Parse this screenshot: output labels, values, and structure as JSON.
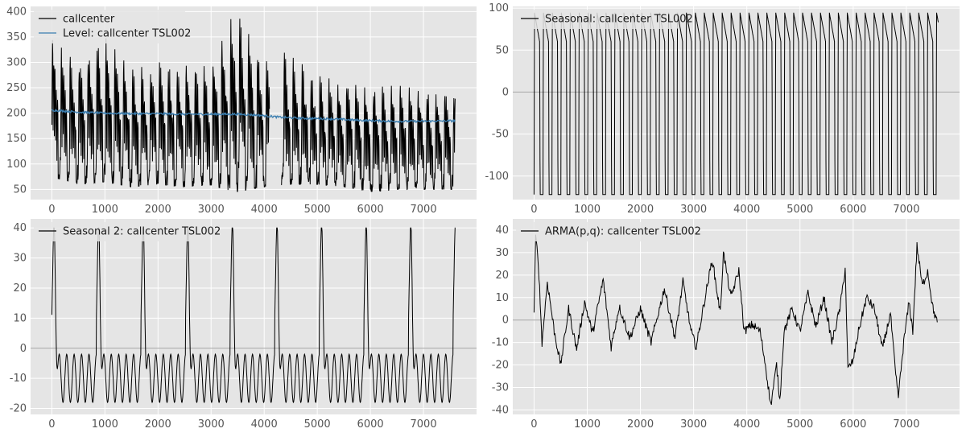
{
  "chart_data": [
    {
      "type": "line",
      "panel": "top-left",
      "title": "",
      "xlabel": "",
      "ylabel": "",
      "xlim": [
        -400,
        8000
      ],
      "ylim": [
        30,
        410
      ],
      "xticks": [
        0,
        1000,
        2000,
        3000,
        4000,
        5000,
        6000,
        7000
      ],
      "yticks": [
        50,
        100,
        150,
        200,
        250,
        300,
        350,
        400
      ],
      "grid": true,
      "zero_line": false,
      "legend_position": "top-left",
      "series": [
        {
          "name": "callcenter",
          "color": "#000000",
          "period": 168,
          "gap": [
            4100,
            4320
          ],
          "envelope": [
            {
              "x": 0,
              "low": 75,
              "high": 345
            },
            {
              "x": 500,
              "low": 60,
              "high": 300
            },
            {
              "x": 1000,
              "low": 65,
              "high": 350
            },
            {
              "x": 1500,
              "low": 55,
              "high": 285
            },
            {
              "x": 2000,
              "low": 60,
              "high": 300
            },
            {
              "x": 2500,
              "low": 55,
              "high": 300
            },
            {
              "x": 3000,
              "low": 58,
              "high": 290
            },
            {
              "x": 3450,
              "low": 45,
              "high": 405
            },
            {
              "x": 4000,
              "low": 55,
              "high": 300
            },
            {
              "x": 4400,
              "low": 60,
              "high": 320
            },
            {
              "x": 5000,
              "low": 60,
              "high": 275
            },
            {
              "x": 5500,
              "low": 55,
              "high": 260
            },
            {
              "x": 6000,
              "low": 45,
              "high": 250
            },
            {
              "x": 6500,
              "low": 50,
              "high": 255
            },
            {
              "x": 7000,
              "low": 50,
              "high": 245
            },
            {
              "x": 7600,
              "low": 50,
              "high": 240
            }
          ]
        },
        {
          "name": "Level: callcenter TSL002",
          "color": "#3b7eb0",
          "points": [
            {
              "x": 0,
              "y": 206
            },
            {
              "x": 500,
              "y": 202
            },
            {
              "x": 1000,
              "y": 200
            },
            {
              "x": 1500,
              "y": 199
            },
            {
              "x": 2000,
              "y": 199
            },
            {
              "x": 2500,
              "y": 198
            },
            {
              "x": 3000,
              "y": 198
            },
            {
              "x": 3500,
              "y": 198
            },
            {
              "x": 3900,
              "y": 196
            },
            {
              "x": 4300,
              "y": 192
            },
            {
              "x": 4700,
              "y": 190
            },
            {
              "x": 5200,
              "y": 189
            },
            {
              "x": 5800,
              "y": 186
            },
            {
              "x": 6400,
              "y": 184
            },
            {
              "x": 7000,
              "y": 184
            },
            {
              "x": 7600,
              "y": 185
            }
          ]
        }
      ]
    },
    {
      "type": "line",
      "panel": "top-right",
      "title": "",
      "xlabel": "",
      "ylabel": "",
      "xlim": [
        -400,
        8000
      ],
      "ylim": [
        -128,
        102
      ],
      "xticks": [
        0,
        1000,
        2000,
        3000,
        4000,
        5000,
        6000,
        7000
      ],
      "yticks": [
        -100,
        -50,
        0,
        50,
        100
      ],
      "grid": true,
      "zero_line": true,
      "legend_position": "top-left",
      "series": [
        {
          "name": "Seasonal: callcenter TSL002",
          "color": "#000000",
          "period": 168,
          "shape": "square-pulse",
          "high": 95,
          "low": -122,
          "range": [
            0,
            7600
          ]
        }
      ]
    },
    {
      "type": "line",
      "panel": "bottom-left",
      "title": "",
      "xlabel": "",
      "ylabel": "",
      "xlim": [
        -400,
        8000
      ],
      "ylim": [
        -22,
        43
      ],
      "xticks": [
        0,
        1000,
        2000,
        3000,
        4000,
        5000,
        6000,
        7000
      ],
      "yticks": [
        -20,
        -10,
        0,
        10,
        20,
        30,
        40
      ],
      "grid": true,
      "zero_line": true,
      "legend_position": "top-left",
      "series": [
        {
          "name": "Seasonal 2: callcenter TSL002",
          "color": "#000000",
          "period": 840,
          "peak": 40,
          "trough": -20,
          "range": [
            0,
            7600
          ]
        }
      ]
    },
    {
      "type": "line",
      "panel": "bottom-right",
      "title": "",
      "xlabel": "",
      "ylabel": "",
      "xlim": [
        -400,
        8000
      ],
      "ylim": [
        -42,
        45
      ],
      "xticks": [
        0,
        1000,
        2000,
        3000,
        4000,
        5000,
        6000,
        7000
      ],
      "yticks": [
        -40,
        -30,
        -20,
        -10,
        0,
        10,
        20,
        30,
        40
      ],
      "grid": true,
      "zero_line": true,
      "legend_position": "top-left",
      "series": [
        {
          "name": "ARMA(p,q): callcenter TSL002",
          "color": "#000000",
          "points": [
            {
              "x": 0,
              "y": 4
            },
            {
              "x": 30,
              "y": 37
            },
            {
              "x": 80,
              "y": 26
            },
            {
              "x": 150,
              "y": -10
            },
            {
              "x": 250,
              "y": 17
            },
            {
              "x": 380,
              "y": -5
            },
            {
              "x": 500,
              "y": -20
            },
            {
              "x": 650,
              "y": 5
            },
            {
              "x": 800,
              "y": -13
            },
            {
              "x": 950,
              "y": 8
            },
            {
              "x": 1100,
              "y": -6
            },
            {
              "x": 1300,
              "y": 18
            },
            {
              "x": 1450,
              "y": -12
            },
            {
              "x": 1600,
              "y": 6
            },
            {
              "x": 1800,
              "y": -8
            },
            {
              "x": 2000,
              "y": 5
            },
            {
              "x": 2200,
              "y": -10
            },
            {
              "x": 2450,
              "y": 14
            },
            {
              "x": 2650,
              "y": -8
            },
            {
              "x": 2800,
              "y": 17
            },
            {
              "x": 2950,
              "y": -5
            },
            {
              "x": 3050,
              "y": -12
            },
            {
              "x": 3200,
              "y": 8
            },
            {
              "x": 3350,
              "y": 27
            },
            {
              "x": 3500,
              "y": 3
            },
            {
              "x": 3560,
              "y": 30
            },
            {
              "x": 3700,
              "y": 10
            },
            {
              "x": 3850,
              "y": 22
            },
            {
              "x": 3950,
              "y": -5
            },
            {
              "x": 4100,
              "y": -2
            },
            {
              "x": 4250,
              "y": -5
            },
            {
              "x": 4350,
              "y": -20
            },
            {
              "x": 4450,
              "y": -38
            },
            {
              "x": 4560,
              "y": -20
            },
            {
              "x": 4620,
              "y": -36
            },
            {
              "x": 4700,
              "y": -5
            },
            {
              "x": 4850,
              "y": 5
            },
            {
              "x": 5000,
              "y": -5
            },
            {
              "x": 5150,
              "y": 12
            },
            {
              "x": 5300,
              "y": -3
            },
            {
              "x": 5450,
              "y": 10
            },
            {
              "x": 5600,
              "y": -10
            },
            {
              "x": 5750,
              "y": 5
            },
            {
              "x": 5850,
              "y": 23
            },
            {
              "x": 5900,
              "y": -22
            },
            {
              "x": 6000,
              "y": -18
            },
            {
              "x": 6100,
              "y": -5
            },
            {
              "x": 6250,
              "y": 10
            },
            {
              "x": 6400,
              "y": 5
            },
            {
              "x": 6550,
              "y": -13
            },
            {
              "x": 6700,
              "y": 3
            },
            {
              "x": 6800,
              "y": -25
            },
            {
              "x": 6850,
              "y": -34
            },
            {
              "x": 6950,
              "y": -10
            },
            {
              "x": 7050,
              "y": 8
            },
            {
              "x": 7120,
              "y": -5
            },
            {
              "x": 7200,
              "y": 33
            },
            {
              "x": 7300,
              "y": 15
            },
            {
              "x": 7400,
              "y": 22
            },
            {
              "x": 7500,
              "y": 5
            },
            {
              "x": 7580,
              "y": -1
            }
          ]
        }
      ]
    }
  ]
}
